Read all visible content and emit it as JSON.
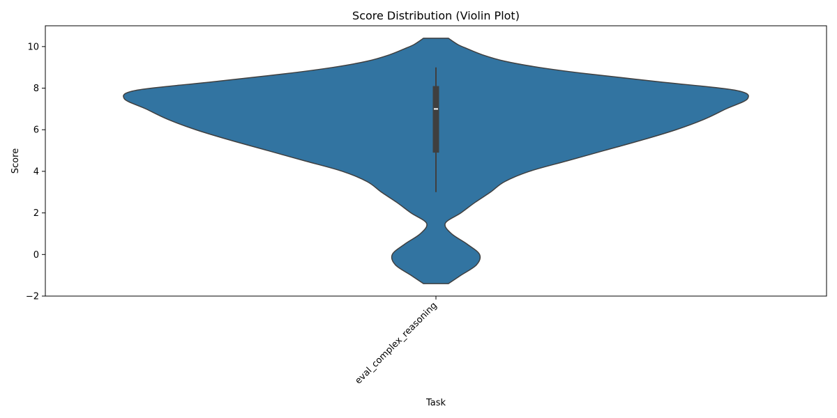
{
  "chart_data": {
    "type": "violin",
    "title": "Score Distribution (Violin Plot)",
    "xlabel": "Task",
    "ylabel": "Score",
    "categories": [
      "eval_complex_reasoning"
    ],
    "ylim": [
      -2,
      11
    ],
    "yticks": [
      -2,
      0,
      2,
      4,
      6,
      8,
      10
    ],
    "grid": false,
    "violins": [
      {
        "category": "eval_complex_reasoning",
        "color": "#3274a1",
        "edge_color": "#3f3f3f",
        "density_profile": [
          {
            "y": -1.4,
            "w": 0.04
          },
          {
            "y": -1.0,
            "w": 0.08
          },
          {
            "y": -0.5,
            "w": 0.13
          },
          {
            "y": 0.0,
            "w": 0.14
          },
          {
            "y": 0.5,
            "w": 0.1
          },
          {
            "y": 1.0,
            "w": 0.05
          },
          {
            "y": 1.5,
            "w": 0.03
          },
          {
            "y": 2.0,
            "w": 0.08
          },
          {
            "y": 2.5,
            "w": 0.125
          },
          {
            "y": 3.0,
            "w": 0.175
          },
          {
            "y": 3.5,
            "w": 0.22
          },
          {
            "y": 4.0,
            "w": 0.3
          },
          {
            "y": 4.5,
            "w": 0.42
          },
          {
            "y": 5.0,
            "w": 0.54
          },
          {
            "y": 5.5,
            "w": 0.66
          },
          {
            "y": 6.0,
            "w": 0.77
          },
          {
            "y": 6.5,
            "w": 0.86
          },
          {
            "y": 7.0,
            "w": 0.93
          },
          {
            "y": 7.5,
            "w": 1.0
          },
          {
            "y": 7.9,
            "w": 0.96
          },
          {
            "y": 8.3,
            "w": 0.72
          },
          {
            "y": 8.7,
            "w": 0.48
          },
          {
            "y": 9.0,
            "w": 0.33
          },
          {
            "y": 9.3,
            "w": 0.22
          },
          {
            "y": 9.6,
            "w": 0.15
          },
          {
            "y": 9.9,
            "w": 0.1
          },
          {
            "y": 10.1,
            "w": 0.07
          },
          {
            "y": 10.4,
            "w": 0.04
          }
        ],
        "box": {
          "whisker_low": 3.0,
          "q1": 4.9,
          "median": 7.0,
          "q3": 8.1,
          "whisker_high": 9.0
        }
      }
    ]
  }
}
